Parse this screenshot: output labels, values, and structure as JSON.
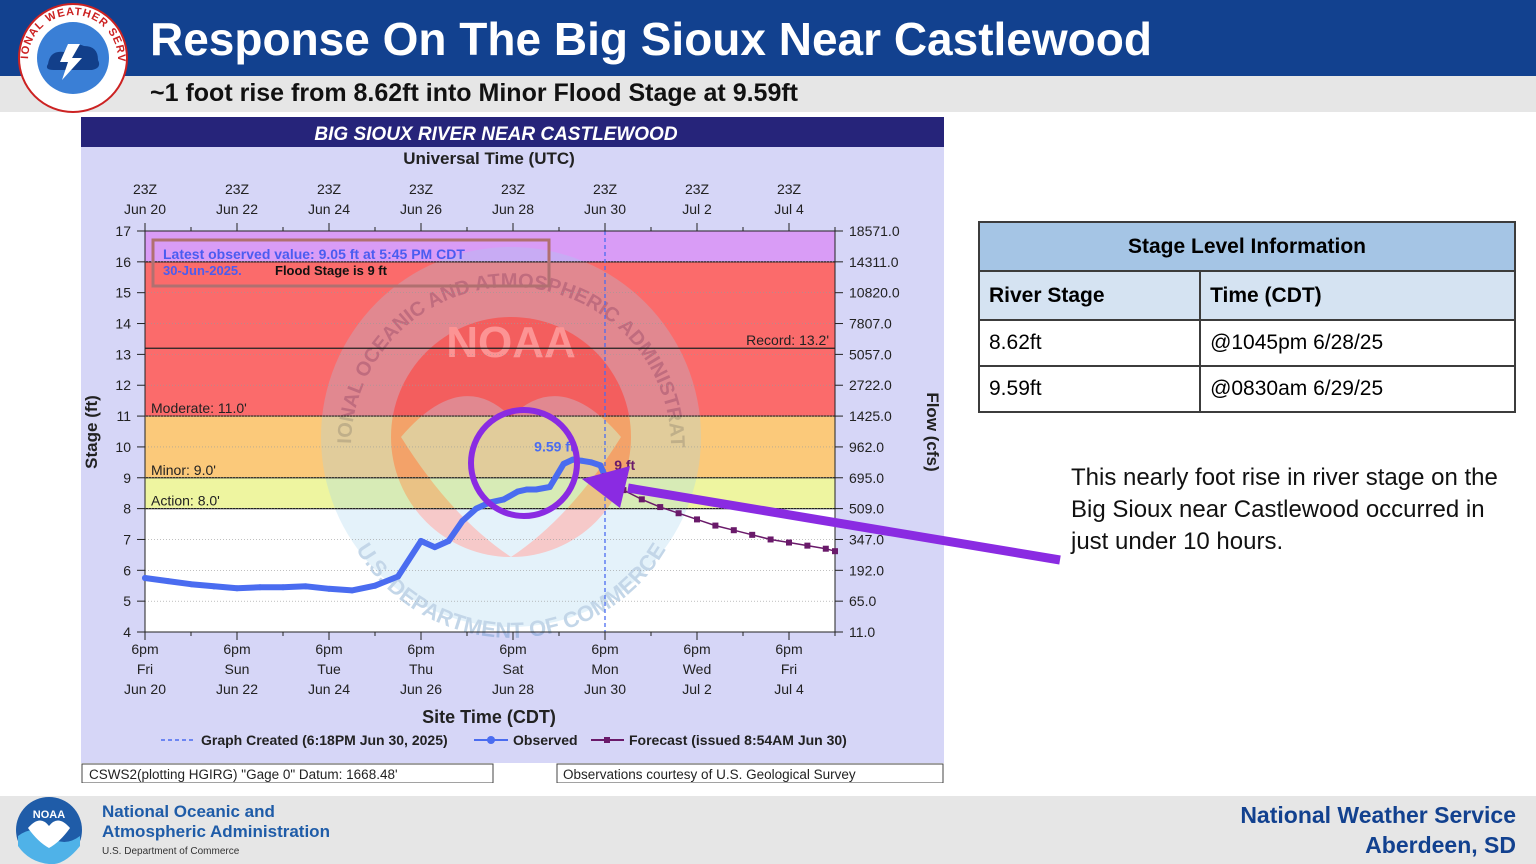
{
  "header": {
    "title": "Response On The Big Sioux Near Castlewood",
    "subtitle": "~1 foot rise from 8.62ft into Minor Flood Stage at 9.59ft"
  },
  "logos": {
    "nws_seal_text": "NATIONAL WEATHER SERVICE",
    "noaa_badge_text": "NOAA"
  },
  "chart_data": {
    "type": "line",
    "title": "BIG SIOUX RIVER NEAR CASTLEWOOD",
    "top_axis_label": "Universal Time (UTC)",
    "top_ticks": [
      {
        "l1": "23Z",
        "l2": "Jun 20"
      },
      {
        "l1": "23Z",
        "l2": "Jun 22"
      },
      {
        "l1": "23Z",
        "l2": "Jun 24"
      },
      {
        "l1": "23Z",
        "l2": "Jun 26"
      },
      {
        "l1": "23Z",
        "l2": "Jun 28"
      },
      {
        "l1": "23Z",
        "l2": "Jun 30"
      },
      {
        "l1": "23Z",
        "l2": "Jul  2"
      },
      {
        "l1": "23Z",
        "l2": "Jul  4"
      }
    ],
    "bottom_ticks": [
      {
        "l1": "6pm",
        "l2": "Fri",
        "l3": "Jun 20"
      },
      {
        "l1": "6pm",
        "l2": "Sun",
        "l3": "Jun 22"
      },
      {
        "l1": "6pm",
        "l2": "Tue",
        "l3": "Jun 24"
      },
      {
        "l1": "6pm",
        "l2": "Thu",
        "l3": "Jun 26"
      },
      {
        "l1": "6pm",
        "l2": "Sat",
        "l3": "Jun 28"
      },
      {
        "l1": "6pm",
        "l2": "Mon",
        "l3": "Jun 30"
      },
      {
        "l1": "6pm",
        "l2": "Wed",
        "l3": "Jul 2"
      },
      {
        "l1": "6pm",
        "l2": "Fri",
        "l3": "Jul 4"
      }
    ],
    "xlabel": "Site Time (CDT)",
    "ylabel": "Stage (ft)",
    "y2label": "Flow (cfs)",
    "xlim_days": [
      0,
      15
    ],
    "ylim": [
      4,
      17
    ],
    "y_ticks": [
      4,
      5,
      6,
      7,
      8,
      9,
      10,
      11,
      12,
      13,
      14,
      15,
      16,
      17
    ],
    "flow_ticks": [
      "11.0",
      "65.0",
      "192.0",
      "347.0",
      "509.0",
      "695.0",
      "962.0",
      "1425.0",
      "2722.0",
      "5057.0",
      "7807.0",
      "10820.0",
      "14311.0",
      "18571.0"
    ],
    "stage_bands": [
      {
        "name": "action",
        "from": 8,
        "to": 9,
        "color": "#eef5a0"
      },
      {
        "name": "minor",
        "from": 9,
        "to": 11,
        "color": "#fbc97a"
      },
      {
        "name": "moderate",
        "from": 11,
        "to": 16,
        "color": "#fb6b6b"
      },
      {
        "name": "major",
        "from": 16,
        "to": 17,
        "color": "#d99cf6"
      }
    ],
    "threshold_labels": [
      {
        "text": "Moderate: 11.0'",
        "y": 11
      },
      {
        "text": "Minor: 9.0'",
        "y": 9
      },
      {
        "text": "Action: 8.0'",
        "y": 8
      }
    ],
    "record": {
      "text": "Record: 13.2'",
      "y": 13.2
    },
    "info_box": {
      "line1": "Latest observed value: 9.05 ft at 5:45 PM CDT",
      "line2a": "30-Jun-2025.",
      "line2b": "Flood Stage is 9 ft"
    },
    "peak_label": "9.59 ft",
    "forecast_label": "9 ft",
    "graph_created_x": 10.0,
    "observed": {
      "name": "Observed",
      "x": [
        0.0,
        0.5,
        1.0,
        1.5,
        2.0,
        2.5,
        3.0,
        3.5,
        4.0,
        4.5,
        5.0,
        5.5,
        6.0,
        6.3,
        6.6,
        6.9,
        7.2,
        7.5,
        7.8,
        8.1,
        8.3,
        8.5,
        8.8,
        9.1,
        9.3,
        9.5,
        9.7,
        9.9,
        10.0
      ],
      "y": [
        5.75,
        5.65,
        5.55,
        5.48,
        5.42,
        5.45,
        5.45,
        5.48,
        5.4,
        5.35,
        5.5,
        5.8,
        6.95,
        6.75,
        6.95,
        7.6,
        8.0,
        8.2,
        8.3,
        8.55,
        8.62,
        8.62,
        8.7,
        9.45,
        9.59,
        9.55,
        9.5,
        9.4,
        9.05
      ]
    },
    "forecast": {
      "name": "Forecast",
      "x": [
        10.0,
        10.4,
        10.8,
        11.2,
        11.6,
        12.0,
        12.4,
        12.8,
        13.2,
        13.6,
        14.0,
        14.4,
        14.8,
        15.0
      ],
      "y": [
        9.05,
        8.6,
        8.3,
        8.05,
        7.85,
        7.65,
        7.45,
        7.3,
        7.15,
        7.0,
        6.9,
        6.8,
        6.7,
        6.62
      ]
    },
    "legend": {
      "created": "Graph Created (6:18PM Jun 30, 2025)",
      "observed": "Observed",
      "forecast": "Forecast (issued 8:54AM Jun 30)"
    },
    "footer_left": "CSWS2(plotting HGIRG) \"Gage 0\" Datum: 1668.48'",
    "footer_right": "Observations courtesy of U.S. Geological Survey",
    "watermark": {
      "top_text": "NATIONAL OCEANIC AND ATMOSPHERIC ADMINISTRATION",
      "bottom_text": "U.S. DEPARTMENT OF COMMERCE"
    }
  },
  "table": {
    "title": "Stage Level Information",
    "headers": [
      "River Stage",
      "Time (CDT)"
    ],
    "rows": [
      [
        "8.62ft",
        "@1045pm 6/28/25"
      ],
      [
        "9.59ft",
        "@0830am 6/29/25"
      ]
    ]
  },
  "callout": {
    "text": "This nearly foot rise in river stage on the Big Sioux near Castlewood occurred in just under 10 hours."
  },
  "footer": {
    "noaa_line1": "National Oceanic and",
    "noaa_line2": "Atmospheric Administration",
    "noaa_line3": "U.S. Department of Commerce",
    "nws_line1": "National Weather Service",
    "nws_line2": "Aberdeen, SD"
  },
  "colors": {
    "header_blue": "#12418f",
    "observed": "#4a6cf0",
    "forecast": "#6a1a6a",
    "highlight": "#8a2be2"
  }
}
